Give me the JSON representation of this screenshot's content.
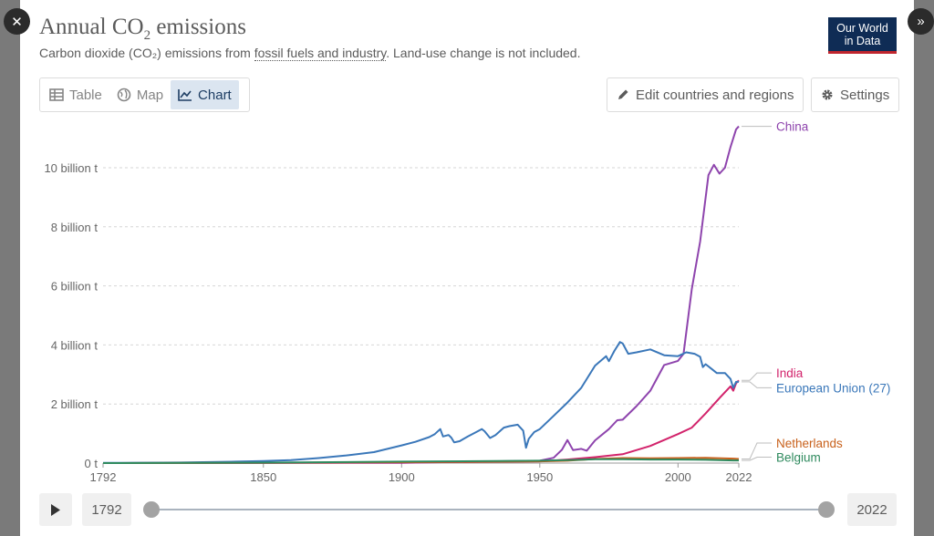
{
  "header": {
    "title": "Annual CO",
    "title_sub": "2",
    "title_rest": " emissions",
    "subtitle_a": "Carbon dioxide (CO₂) emissions from ",
    "subtitle_link": "fossil fuels and industry",
    "subtitle_b": ". Land-use change is not included.",
    "logo_line1": "Our World",
    "logo_line2": "in Data"
  },
  "tabs": [
    {
      "label": "Table",
      "icon": "table-icon"
    },
    {
      "label": "Map",
      "icon": "globe-icon"
    },
    {
      "label": "Chart",
      "icon": "line-chart-icon",
      "active": true
    }
  ],
  "toolbar": {
    "edit_label": "Edit countries and regions",
    "settings_label": "Settings"
  },
  "timeline": {
    "start_year": "1792",
    "end_year": "2022"
  },
  "colors": {
    "China": "#8e44ad",
    "India": "#d2236b",
    "European Union (27)": "#3a77b9",
    "Netherlands": "#c8611c",
    "Belgium": "#2f8a5e"
  },
  "chart_data": {
    "type": "line",
    "ylabel_unit": "t",
    "yticks": [
      {
        "value": 0,
        "label": "0 t"
      },
      {
        "value": 2,
        "label": "2 billion t"
      },
      {
        "value": 4,
        "label": "4 billion t"
      },
      {
        "value": 6,
        "label": "6 billion t"
      },
      {
        "value": 8,
        "label": "8 billion t"
      },
      {
        "value": 10,
        "label": "10 billion t"
      }
    ],
    "xticks": [
      1792,
      1850,
      1900,
      1950,
      2000,
      2022
    ],
    "xlim": [
      1792,
      2022
    ],
    "ylim": [
      0,
      11.5
    ],
    "grid": "horizontal dotted",
    "legend": "right, end-of-line labels",
    "series": [
      {
        "name": "China",
        "points": [
          [
            1792,
            0
          ],
          [
            1900,
            0.01
          ],
          [
            1950,
            0.08
          ],
          [
            1955,
            0.18
          ],
          [
            1958,
            0.45
          ],
          [
            1960,
            0.78
          ],
          [
            1962,
            0.44
          ],
          [
            1965,
            0.48
          ],
          [
            1967,
            0.42
          ],
          [
            1970,
            0.77
          ],
          [
            1975,
            1.15
          ],
          [
            1978,
            1.45
          ],
          [
            1980,
            1.47
          ],
          [
            1985,
            1.93
          ],
          [
            1990,
            2.45
          ],
          [
            1995,
            3.32
          ],
          [
            2000,
            3.46
          ],
          [
            2002,
            3.7
          ],
          [
            2005,
            5.9
          ],
          [
            2008,
            7.5
          ],
          [
            2011,
            9.75
          ],
          [
            2013,
            10.1
          ],
          [
            2015,
            9.8
          ],
          [
            2017,
            10.0
          ],
          [
            2019,
            10.7
          ],
          [
            2021,
            11.3
          ],
          [
            2022,
            11.4
          ]
        ]
      },
      {
        "name": "India",
        "points": [
          [
            1792,
            0
          ],
          [
            1900,
            0.02
          ],
          [
            1950,
            0.06
          ],
          [
            1960,
            0.12
          ],
          [
            1970,
            0.2
          ],
          [
            1980,
            0.3
          ],
          [
            1990,
            0.58
          ],
          [
            2000,
            0.98
          ],
          [
            2005,
            1.2
          ],
          [
            2010,
            1.68
          ],
          [
            2015,
            2.2
          ],
          [
            2019,
            2.6
          ],
          [
            2020,
            2.45
          ],
          [
            2021,
            2.7
          ],
          [
            2022,
            2.8
          ]
        ]
      },
      {
        "name": "European Union (27)",
        "points": [
          [
            1792,
            0.01
          ],
          [
            1800,
            0.01
          ],
          [
            1820,
            0.02
          ],
          [
            1840,
            0.05
          ],
          [
            1850,
            0.07
          ],
          [
            1860,
            0.1
          ],
          [
            1870,
            0.17
          ],
          [
            1880,
            0.26
          ],
          [
            1890,
            0.37
          ],
          [
            1900,
            0.6
          ],
          [
            1905,
            0.72
          ],
          [
            1910,
            0.88
          ],
          [
            1912,
            0.98
          ],
          [
            1914,
            1.15
          ],
          [
            1915,
            0.9
          ],
          [
            1917,
            0.95
          ],
          [
            1918,
            0.86
          ],
          [
            1919,
            0.7
          ],
          [
            1921,
            0.74
          ],
          [
            1924,
            0.9
          ],
          [
            1927,
            1.05
          ],
          [
            1929,
            1.15
          ],
          [
            1930,
            1.08
          ],
          [
            1932,
            0.85
          ],
          [
            1934,
            0.95
          ],
          [
            1937,
            1.2
          ],
          [
            1939,
            1.25
          ],
          [
            1942,
            1.3
          ],
          [
            1944,
            1.1
          ],
          [
            1945,
            0.52
          ],
          [
            1946,
            0.82
          ],
          [
            1948,
            1.05
          ],
          [
            1950,
            1.15
          ],
          [
            1955,
            1.6
          ],
          [
            1960,
            2.05
          ],
          [
            1965,
            2.55
          ],
          [
            1970,
            3.3
          ],
          [
            1974,
            3.62
          ],
          [
            1975,
            3.45
          ],
          [
            1977,
            3.8
          ],
          [
            1979,
            4.1
          ],
          [
            1980,
            4.05
          ],
          [
            1982,
            3.7
          ],
          [
            1985,
            3.75
          ],
          [
            1990,
            3.85
          ],
          [
            1995,
            3.65
          ],
          [
            2000,
            3.62
          ],
          [
            2003,
            3.75
          ],
          [
            2006,
            3.7
          ],
          [
            2008,
            3.6
          ],
          [
            2009,
            3.25
          ],
          [
            2010,
            3.35
          ],
          [
            2012,
            3.2
          ],
          [
            2014,
            3.05
          ],
          [
            2017,
            3.05
          ],
          [
            2019,
            2.85
          ],
          [
            2020,
            2.55
          ],
          [
            2021,
            2.75
          ],
          [
            2022,
            2.75
          ]
        ]
      },
      {
        "name": "Netherlands",
        "points": [
          [
            1792,
            0
          ],
          [
            1850,
            0.01
          ],
          [
            1900,
            0.03
          ],
          [
            1950,
            0.06
          ],
          [
            1960,
            0.08
          ],
          [
            1970,
            0.14
          ],
          [
            1980,
            0.17
          ],
          [
            1990,
            0.16
          ],
          [
            2000,
            0.17
          ],
          [
            2010,
            0.18
          ],
          [
            2020,
            0.15
          ],
          [
            2022,
            0.14
          ]
        ]
      },
      {
        "name": "Belgium",
        "points": [
          [
            1792,
            0
          ],
          [
            1850,
            0.015
          ],
          [
            1900,
            0.05
          ],
          [
            1950,
            0.08
          ],
          [
            1960,
            0.1
          ],
          [
            1970,
            0.13
          ],
          [
            1980,
            0.13
          ],
          [
            1990,
            0.12
          ],
          [
            2000,
            0.12
          ],
          [
            2010,
            0.11
          ],
          [
            2020,
            0.09
          ],
          [
            2022,
            0.09
          ]
        ]
      }
    ],
    "line_labels": [
      {
        "name": "China",
        "value": 11.4
      },
      {
        "name": "India",
        "value": 3.05
      },
      {
        "name": "European Union (27)",
        "value": 2.55
      },
      {
        "name": "Netherlands",
        "value": 0.68
      },
      {
        "name": "Belgium",
        "value": 0.2
      }
    ]
  }
}
